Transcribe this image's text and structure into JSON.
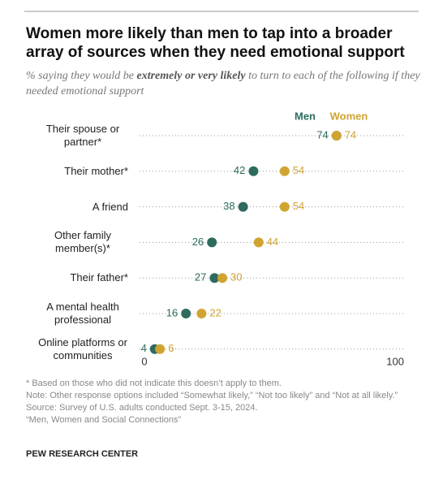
{
  "chart_data": {
    "type": "dot",
    "title": "Women more likely than men to tap into a broader array of sources when they need emotional support",
    "subtitle": [
      "% saying they would be ",
      "extremely or very likely",
      " to turn to each of the following if they needed emotional support"
    ],
    "categories": [
      "Their spouse or partner*",
      "Their mother*",
      "A friend",
      "Other family member(s)*",
      "Their father*",
      "A mental health professional",
      "Online platforms or communities"
    ],
    "series": [
      {
        "name": "Men",
        "color": "#2e6b5e",
        "values": [
          74,
          42,
          38,
          26,
          27,
          16,
          4
        ]
      },
      {
        "name": "Women",
        "color": "#d1a431",
        "values": [
          74,
          54,
          54,
          44,
          30,
          22,
          6
        ]
      }
    ],
    "xlim": [
      0,
      100
    ],
    "xticks": [
      0,
      100
    ],
    "notes": [
      "* Based on those who did not indicate this doesn’t apply to them.",
      "Note: Other response options included “Somewhat likely,” “Not too likely” and “Not at all likely.”",
      "Source: Survey of U.S. adults conducted Sept. 3-15, 2024.",
      "“Men, Women and Social Connections”"
    ],
    "source": "PEW RESEARCH CENTER"
  }
}
